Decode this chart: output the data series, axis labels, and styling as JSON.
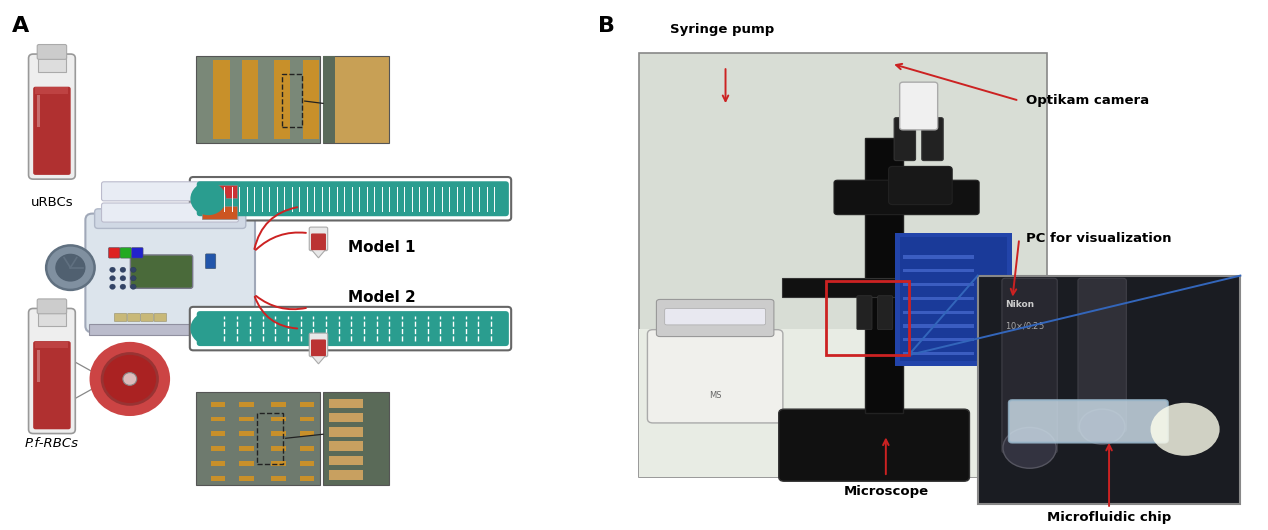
{
  "panel_A_label": "A",
  "panel_B_label": "B",
  "label_fontsize": 16,
  "annotation_fontsize": 9.5,
  "urbc_label": "uRBCs",
  "pf_label": "P.f-RBCs",
  "model1_label": "Model 1",
  "model2_label": "Model 2",
  "bg_color": "#ffffff",
  "teal_color": "#2a9d8f",
  "teal_dark": "#1e7a6e",
  "tube_fill": "#b03030",
  "tube_glass": "#e8e8e8",
  "tube_cap": "#dddddd",
  "micro_img1_bg": "#7a8878",
  "micro_img1_stripe": "#c8902a",
  "micro_img1_zoom_bg": "#c8a055",
  "micro_img2_bg": "#6e7a6e",
  "micro_img2_stripe": "#c8902a",
  "micro_img2_zoom_bg": "#6e7a6e",
  "micro_img2_zoom_block": "#c8a060",
  "pump_body": "#dce4ec",
  "pump_edge": "#a0a8b8",
  "pump_screen": "#4a6a3a",
  "pump_base": "#bbbccc",
  "pump_wheel_outer": "#607080",
  "pump_wheel_inner": "#506070",
  "red_line": "#cc2222",
  "blue_line": "#3366bb",
  "black_line": "#222222",
  "arrow_red": "#cc2222",
  "arrow_blue": "#3366bb"
}
